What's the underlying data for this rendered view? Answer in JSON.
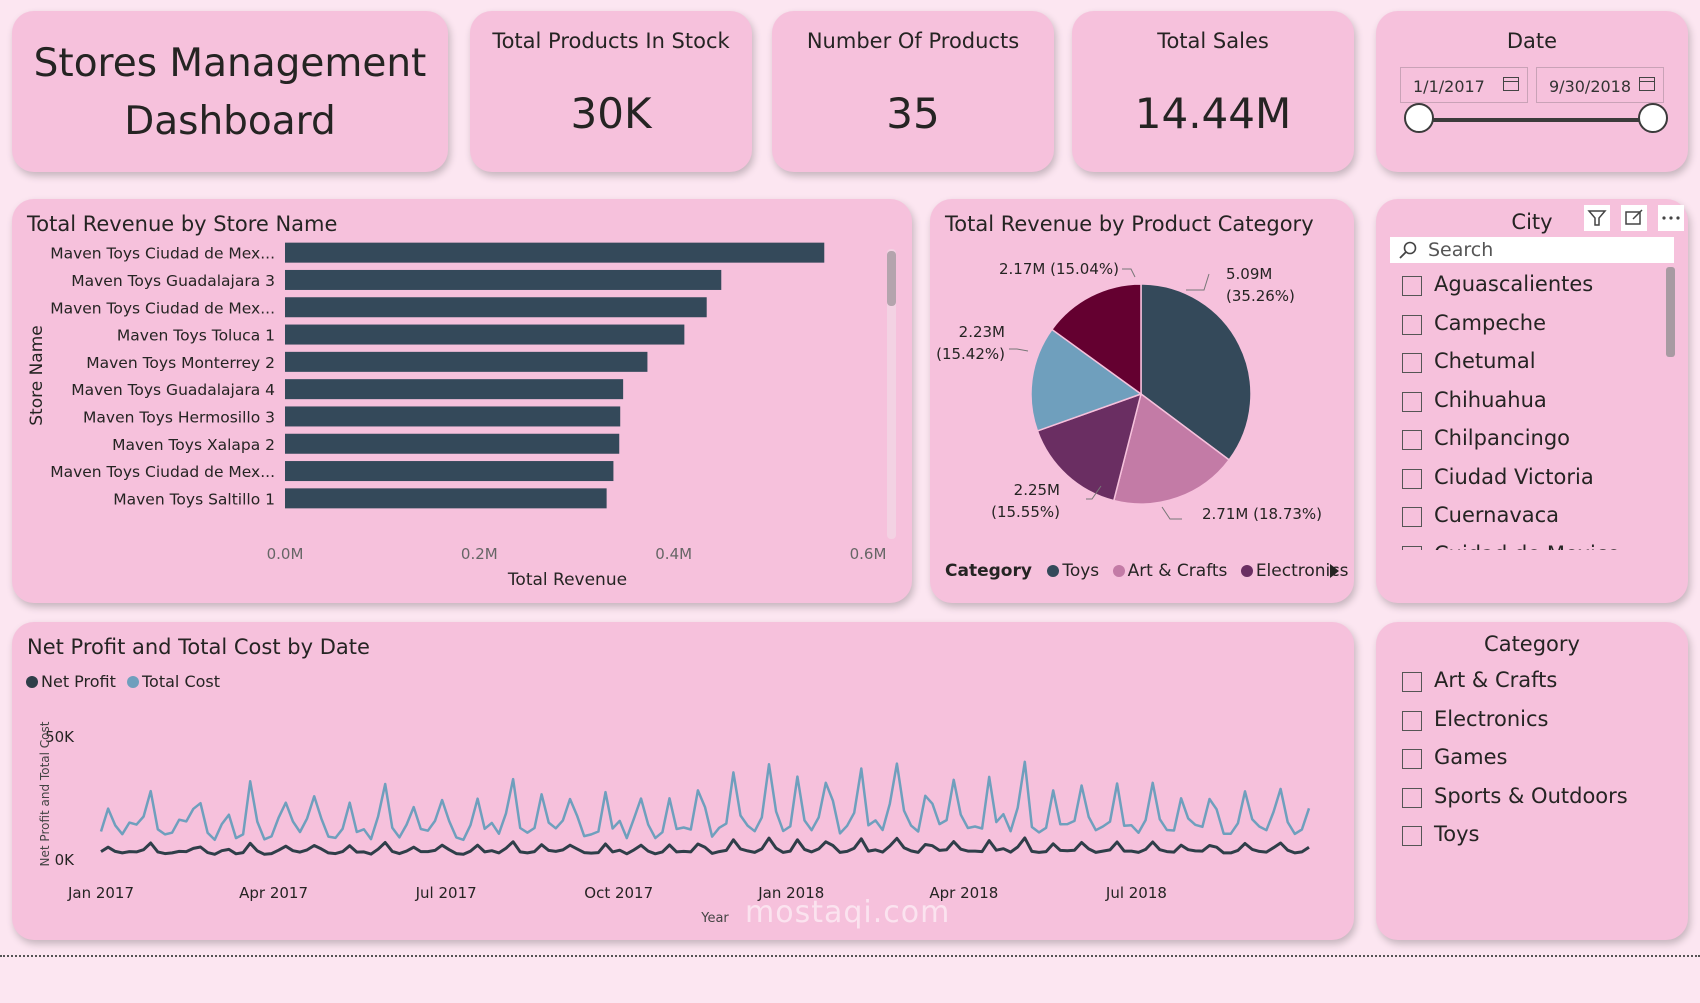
{
  "dashboard_title": "Stores Management Dashboard",
  "kpis": [
    {
      "label": "Total Products In Stock",
      "value": "30K"
    },
    {
      "label": "Number Of Products",
      "value": "35"
    },
    {
      "label": "Total Sales",
      "value": "14.44M"
    }
  ],
  "date_slicer": {
    "title": "Date",
    "start": "1/1/2017",
    "end": "9/30/2018"
  },
  "city_slicer": {
    "title": "City",
    "search_placeholder": "Search",
    "items": [
      "Aguascalientes",
      "Campeche",
      "Chetumal",
      "Chihuahua",
      "Chilpancingo",
      "Ciudad Victoria",
      "Cuernavaca",
      "Cuidad de Mexico"
    ]
  },
  "category_slicer": {
    "title": "Category",
    "items": [
      "Art & Crafts",
      "Electronics",
      "Games",
      "Sports & Outdoors",
      "Toys"
    ]
  },
  "colors": {
    "page_bg": "#fce6f1",
    "card_bg": "#f6c1dc",
    "bar": "#34495a",
    "net_profit": "#2f3e49",
    "total_cost": "#6f9fbd",
    "pie_toys": "#34495a",
    "pie_art_crafts": "#c37ba6",
    "pie_electronics": "#6a2e62",
    "pie_games": "#6f9fbd",
    "pie_sports_outdoors": "#640030"
  },
  "watermark": "mostaqi.com",
  "chart_data": [
    {
      "type": "bar",
      "orientation": "horizontal",
      "title": "Total Revenue by Store Name",
      "xlabel": "Total Revenue",
      "ylabel": "Store Name",
      "categories": [
        "Maven Toys Ciudad de Mex...",
        "Maven Toys Guadalajara 3",
        "Maven Toys Ciudad de Mex...",
        "Maven Toys Toluca 1",
        "Maven Toys Monterrey 2",
        "Maven Toys Guadalajara 4",
        "Maven Toys Hermosillo 3",
        "Maven Toys Xalapa 2",
        "Maven Toys Ciudad de Mex...",
        "Maven Toys Saltillo 1"
      ],
      "values": [
        0.555,
        0.449,
        0.434,
        0.411,
        0.373,
        0.348,
        0.345,
        0.344,
        0.338,
        0.331
      ],
      "xlim": [
        0,
        0.6
      ],
      "ticks": [
        "0.0M",
        "0.2M",
        "0.4M",
        "0.6M"
      ],
      "grid": false
    },
    {
      "type": "pie",
      "title": "Total Revenue by Product Category",
      "legend_title": "Category",
      "legend_visible": [
        "Toys",
        "Art & Crafts",
        "Electronics"
      ],
      "slices": [
        {
          "value": 5.09,
          "label": "5.09M",
          "pct": "(35.26%)",
          "color_key": "pie_toys"
        },
        {
          "value": 2.71,
          "label": "2.71M (18.73%)",
          "pct": "",
          "color_key": "pie_art_crafts"
        },
        {
          "value": 2.25,
          "label": "2.25M",
          "pct": "(15.55%)",
          "color_key": "pie_electronics"
        },
        {
          "value": 2.23,
          "label": "2.23M",
          "pct": "(15.42%)",
          "color_key": "pie_games"
        },
        {
          "value": 2.17,
          "label": "2.17M (15.04%)",
          "pct": "",
          "color_key": "pie_sports_outdoors"
        }
      ]
    },
    {
      "type": "line",
      "title": "Net Profit and Total Cost by Date",
      "xlabel": "Year",
      "ylabel": "Net Profit and Total Cost",
      "ylim": [
        0,
        50000
      ],
      "yticks": [
        "0K",
        "50K"
      ],
      "xticks": [
        "Jan 2017",
        "Apr 2017",
        "Jul 2017",
        "Oct 2017",
        "Jan 2018",
        "Apr 2018",
        "Jul 2018"
      ],
      "x_range": [
        "2017-01-01",
        "2018-09-30"
      ],
      "series": [
        {
          "name": "Net Profit",
          "color_key": "net_profit",
          "values": [
            3400,
            5200,
            3500,
            2900,
            3400,
            3300,
            4200,
            6900,
            3300,
            2600,
            2900,
            3500,
            3400,
            4700,
            5300,
            3000,
            2300,
            3800,
            4300,
            2500,
            3000,
            6800,
            3700,
            2300,
            2600,
            4000,
            5600,
            3800,
            3200,
            4100,
            5900,
            4500,
            2900,
            2600,
            3400,
            5800,
            3200,
            3300,
            2400,
            4400,
            7100,
            3500,
            2600,
            3600,
            5200,
            3400,
            3400,
            3900,
            6000,
            4200,
            2600,
            2300,
            3600,
            6000,
            3300,
            3800,
            2900,
            4800,
            7400,
            3300,
            2900,
            3400,
            6200,
            3900,
            3500,
            4100,
            6000,
            4500,
            3000,
            2800,
            3000,
            6500,
            3300,
            4000,
            2500,
            4100,
            6000,
            3600,
            2500,
            3300,
            6100,
            3300,
            3500,
            3300,
            6500,
            5200,
            2700,
            3400,
            3900,
            8200,
            4500,
            3700,
            3100,
            4500,
            8900,
            4800,
            3100,
            3600,
            8200,
            4300,
            3300,
            4500,
            7400,
            5900,
            3100,
            3500,
            4800,
            8600,
            3600,
            4100,
            3200,
            5700,
            8800,
            5000,
            3700,
            3100,
            6300,
            5800,
            3900,
            4200,
            7500,
            4400,
            3600,
            3600,
            3400,
            7900,
            4000,
            4600,
            3200,
            5300,
            9000,
            3500,
            3100,
            3400,
            6600,
            3900,
            3800,
            4000,
            7100,
            4500,
            3100,
            3600,
            4100,
            7300,
            3600,
            3600,
            3100,
            4300,
            7300,
            4200,
            3400,
            3200,
            6000,
            4200,
            3700,
            3600,
            5900,
            5200,
            2900,
            2900,
            3900,
            6700,
            4300,
            3500,
            3200,
            5000,
            6900,
            4000,
            2900,
            3300,
            5200
          ]
        },
        {
          "name": "Total Cost",
          "color_key": "total_cost",
          "values": [
            11600,
            20900,
            14100,
            10500,
            15200,
            14400,
            17700,
            28000,
            12500,
            10400,
            11100,
            16400,
            15700,
            20800,
            23100,
            11100,
            8200,
            14600,
            18400,
            8900,
            10400,
            32000,
            15600,
            8400,
            9600,
            17200,
            23300,
            15700,
            11400,
            16900,
            25900,
            16900,
            9500,
            9000,
            12700,
            23300,
            11400,
            12500,
            8500,
            17700,
            30900,
            13100,
            9200,
            14400,
            21500,
            12600,
            11900,
            15900,
            24400,
            15800,
            9200,
            8200,
            14200,
            24900,
            12700,
            15100,
            10700,
            19000,
            32900,
            13000,
            11100,
            13000,
            26700,
            15200,
            12900,
            16100,
            24800,
            18000,
            9700,
            10400,
            11600,
            27600,
            12800,
            15900,
            8900,
            16800,
            25000,
            14400,
            8900,
            11300,
            25100,
            12600,
            13200,
            12400,
            28300,
            21500,
            9500,
            13100,
            14800,
            35600,
            18100,
            14000,
            11700,
            17300,
            38900,
            19700,
            11800,
            13700,
            33900,
            16100,
            12100,
            17300,
            31400,
            24100,
            10800,
            13900,
            19200,
            37200,
            14100,
            16100,
            12200,
            22800,
            39200,
            20100,
            14000,
            11600,
            26100,
            22900,
            14600,
            16200,
            32600,
            18400,
            13000,
            13600,
            12800,
            33800,
            15400,
            18600,
            11700,
            21200,
            39900,
            13400,
            11200,
            13100,
            28300,
            14500,
            14600,
            15900,
            30300,
            17500,
            12100,
            13600,
            15600,
            31100,
            13900,
            14100,
            11100,
            16200,
            31400,
            16600,
            12200,
            12000,
            25100,
            16900,
            14300,
            13500,
            24800,
            20600,
            10700,
            10700,
            14900,
            27900,
            16600,
            13600,
            12100,
            19500,
            28900,
            15400,
            10600,
            12400,
            21000
          ]
        }
      ]
    }
  ]
}
